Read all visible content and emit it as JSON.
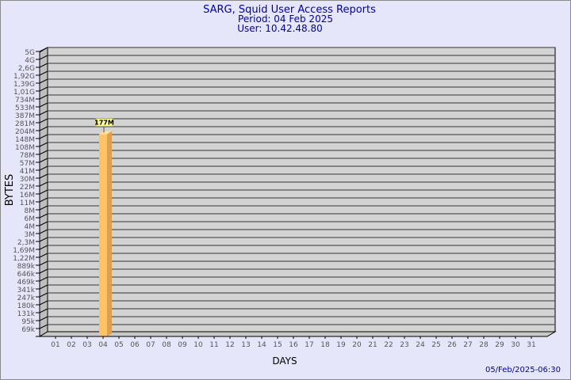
{
  "header": {
    "title": "SARG, Squid User Access Reports",
    "period": "Period: 04 Feb 2025",
    "user": "User: 10.42.48.80"
  },
  "footer": {
    "timestamp": "05/Feb/2025-06:30"
  },
  "colors": {
    "background": "#e6e6fa",
    "title": "#0000a0",
    "plot": "#d3d3d3",
    "bar": "#ffc266",
    "bar_side": "#dca050",
    "label_box": "#ffff99"
  },
  "chart_data": {
    "type": "bar",
    "title": "SARG, Squid User Access Reports",
    "xlabel": "DAYS",
    "ylabel": "BYTES",
    "y_scale": "log",
    "grid": true,
    "y_tick_labels": [
      "5G",
      "4G",
      "2,6G",
      "1,92G",
      "1,39G",
      "1,01G",
      "734M",
      "533M",
      "387M",
      "281M",
      "204M",
      "148M",
      "108M",
      "78M",
      "57M",
      "41M",
      "30M",
      "22M",
      "16M",
      "11M",
      "8M",
      "6M",
      "4M",
      "3M",
      "2,3M",
      "1,69M",
      "1,22M",
      "889k",
      "646k",
      "469k",
      "341k",
      "247k",
      "180k",
      "131k",
      "95k",
      "69k"
    ],
    "categories": [
      "01",
      "02",
      "03",
      "04",
      "05",
      "06",
      "07",
      "08",
      "09",
      "10",
      "11",
      "12",
      "13",
      "14",
      "15",
      "16",
      "17",
      "18",
      "19",
      "20",
      "21",
      "22",
      "23",
      "24",
      "25",
      "26",
      "27",
      "28",
      "29",
      "30",
      "31"
    ],
    "values": [
      null,
      null,
      null,
      177000000,
      null,
      null,
      null,
      null,
      null,
      null,
      null,
      null,
      null,
      null,
      null,
      null,
      null,
      null,
      null,
      null,
      null,
      null,
      null,
      null,
      null,
      null,
      null,
      null,
      null,
      null,
      null
    ],
    "data_labels": {
      "04": "177M"
    }
  }
}
